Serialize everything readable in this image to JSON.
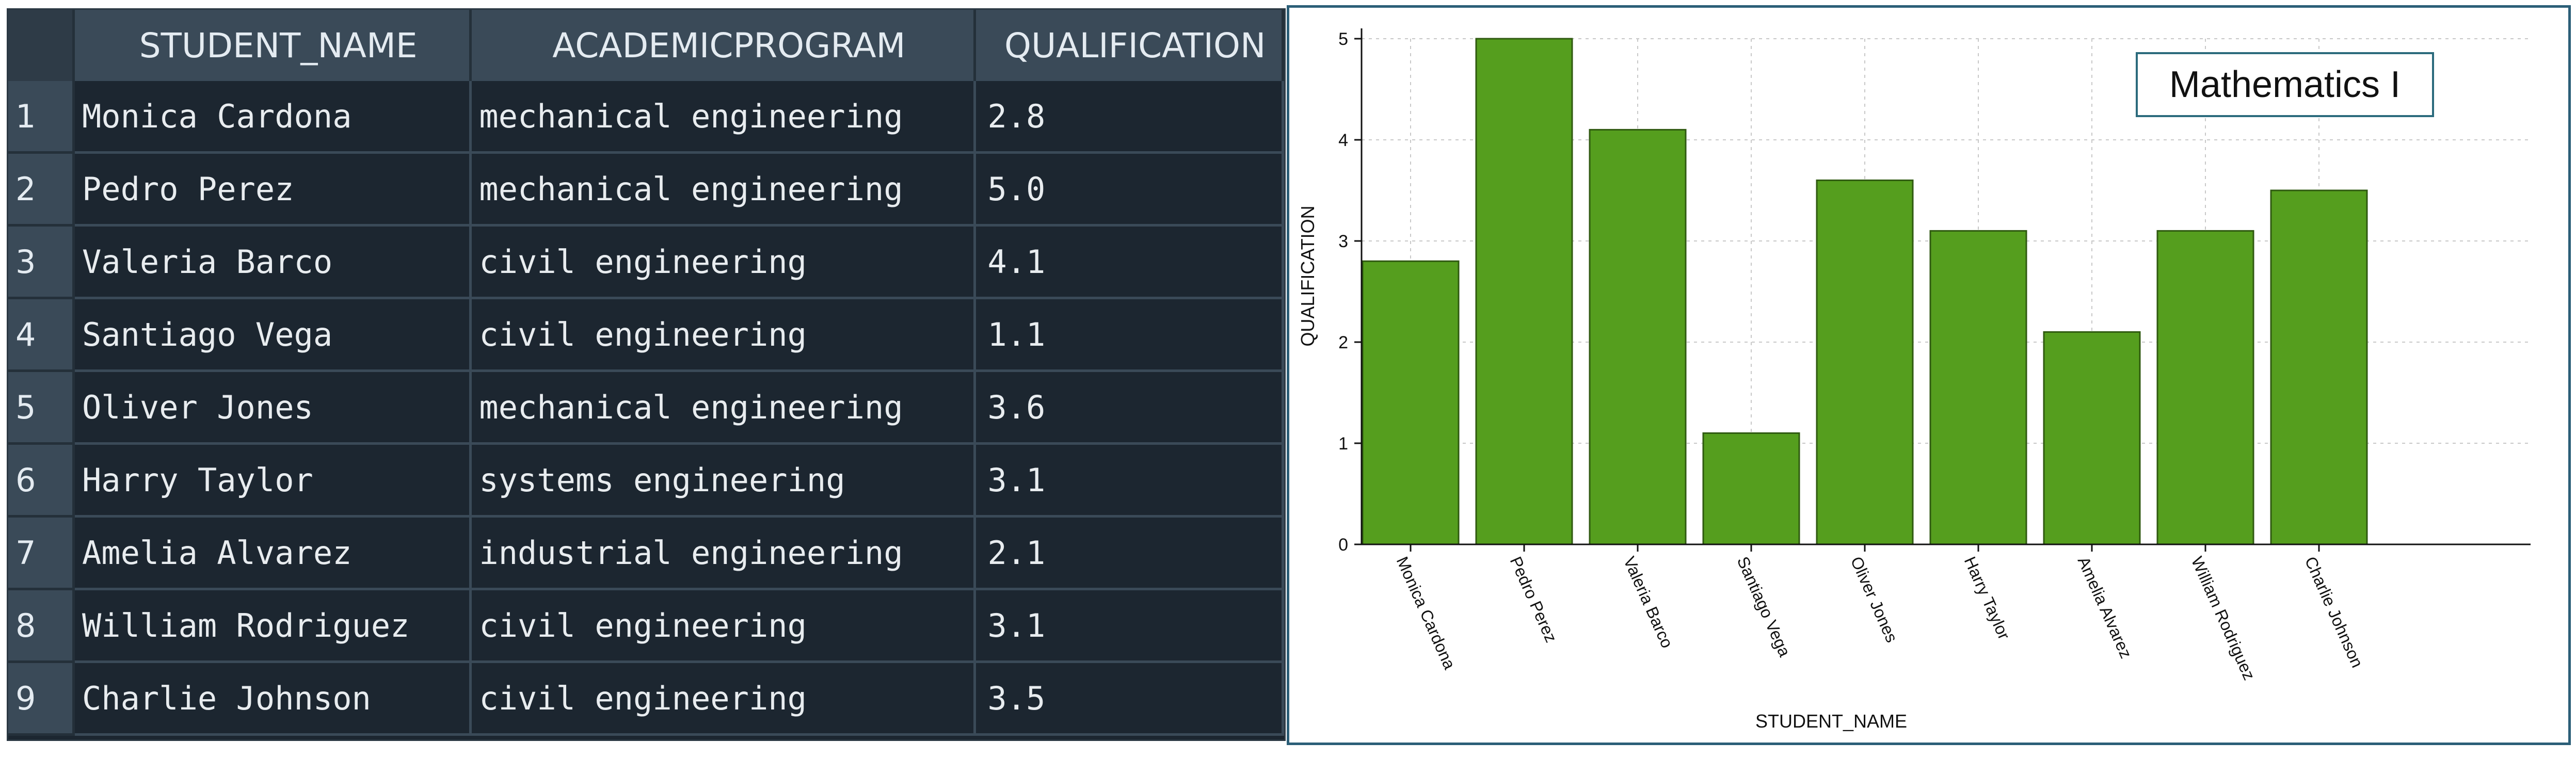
{
  "results": {
    "columns": [
      "STUDENT_NAME",
      "ACADEMICPROGRAM",
      "QUALIFICATION"
    ],
    "rows": [
      {
        "num": "1",
        "name": "Monica Cardona",
        "program": "mechanical engineering",
        "qualification": "2.8"
      },
      {
        "num": "2",
        "name": "Pedro Perez",
        "program": "mechanical engineering",
        "qualification": "5.0"
      },
      {
        "num": "3",
        "name": "Valeria Barco",
        "program": "civil engineering",
        "qualification": "4.1"
      },
      {
        "num": "4",
        "name": "Santiago Vega",
        "program": "civil engineering",
        "qualification": "1.1"
      },
      {
        "num": "5",
        "name": "Oliver Jones",
        "program": "mechanical engineering",
        "qualification": "3.6"
      },
      {
        "num": "6",
        "name": "Harry Taylor",
        "program": "systems engineering",
        "qualification": "3.1"
      },
      {
        "num": "7",
        "name": "Amelia Alvarez",
        "program": "industrial engineering",
        "qualification": "2.1"
      },
      {
        "num": "8",
        "name": "William Rodriguez",
        "program": "civil engineering",
        "qualification": "3.1"
      },
      {
        "num": "9",
        "name": "Charlie Johnson",
        "program": "civil engineering",
        "qualification": "3.5"
      }
    ]
  },
  "chart_data": {
    "type": "bar",
    "title": "Mathematics I",
    "xlabel": "STUDENT_NAME",
    "ylabel": "QUALIFICATION",
    "categories": [
      "Monica Cardona",
      "Pedro Perez",
      "Valeria Barco",
      "Santiago Vega",
      "Oliver Jones",
      "Harry Taylor",
      "Amelia Alvarez",
      "William Rodriguez",
      "Charlie Johnson"
    ],
    "values": [
      2.8,
      5.0,
      4.1,
      1.1,
      3.6,
      3.1,
      2.1,
      3.1,
      3.5
    ],
    "ylim": [
      0,
      5
    ],
    "yticks": [
      "0",
      "1",
      "2",
      "3",
      "4",
      "5"
    ],
    "grid": true,
    "bar_color": "#559e1e",
    "bar_edge_color": "#2f5a10",
    "legend": "top-right"
  }
}
